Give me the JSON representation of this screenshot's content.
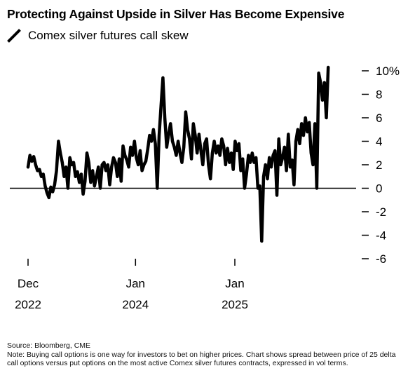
{
  "title": "Protecting Against Upside in Silver Has Become Expensive",
  "legend_label": "Comex silver futures call skew",
  "footer": {
    "source": "Source: Bloomberg, CME",
    "note": "Note: Buying call options is one way for investors to bet on higher prices. Chart shows spread between price of 25 delta call options versus put options on the most active Comex silver futures contracts, expressed in vol terms."
  },
  "chart_data": {
    "type": "line",
    "title": "Protecting Against Upside in Silver Has Become Expensive",
    "xlabel": "",
    "ylabel": "",
    "ylim": [
      -6,
      10
    ],
    "y_ticks": [
      10,
      8,
      6,
      4,
      2,
      0,
      -2,
      -4,
      -6
    ],
    "y_tick_labels": [
      "10%",
      "8",
      "6",
      "4",
      "2",
      "0",
      "-2",
      "-4",
      "-6"
    ],
    "x_ticks": [
      {
        "date": "2022-12-01",
        "line1": "Dec",
        "line2": "2022"
      },
      {
        "date": "2024-01-01",
        "line1": "Jan",
        "line2": "2024"
      },
      {
        "date": "2025-01-01",
        "line1": "Jan",
        "line2": "2025"
      }
    ],
    "zero_line": true,
    "grid": false,
    "series": [
      {
        "name": "Comex silver futures call skew",
        "color": "#000000",
        "points": [
          [
            "2022-12-01",
            1.8
          ],
          [
            "2022-12-08",
            2.8
          ],
          [
            "2022-12-15",
            2.3
          ],
          [
            "2022-12-22",
            2.7
          ],
          [
            "2022-12-29",
            2.0
          ],
          [
            "2023-01-05",
            1.5
          ],
          [
            "2023-01-12",
            1.6
          ],
          [
            "2023-01-19",
            1.0
          ],
          [
            "2023-01-26",
            1.2
          ],
          [
            "2023-02-02",
            0.2
          ],
          [
            "2023-02-09",
            -0.4
          ],
          [
            "2023-02-16",
            -0.8
          ],
          [
            "2023-02-23",
            0.1
          ],
          [
            "2023-03-02",
            -0.3
          ],
          [
            "2023-03-09",
            0.3
          ],
          [
            "2023-03-16",
            1.5
          ],
          [
            "2023-03-23",
            4.0
          ],
          [
            "2023-03-30",
            3.0
          ],
          [
            "2023-04-06",
            2.2
          ],
          [
            "2023-04-13",
            1.0
          ],
          [
            "2023-04-20",
            1.8
          ],
          [
            "2023-04-27",
            0.0
          ],
          [
            "2023-05-04",
            2.6
          ],
          [
            "2023-05-11",
            2.0
          ],
          [
            "2023-05-18",
            2.2
          ],
          [
            "2023-05-25",
            1.0
          ],
          [
            "2023-06-01",
            1.4
          ],
          [
            "2023-06-08",
            0.5
          ],
          [
            "2023-06-15",
            1.2
          ],
          [
            "2023-06-22",
            -0.5
          ],
          [
            "2023-06-29",
            0.6
          ],
          [
            "2023-07-06",
            3.0
          ],
          [
            "2023-07-13",
            2.2
          ],
          [
            "2023-07-20",
            0.5
          ],
          [
            "2023-07-27",
            1.5
          ],
          [
            "2023-08-03",
            0.2
          ],
          [
            "2023-08-10",
            1.0
          ],
          [
            "2023-08-17",
            1.8
          ],
          [
            "2023-08-24",
            0.0
          ],
          [
            "2023-08-31",
            2.0
          ],
          [
            "2023-09-07",
            2.2
          ],
          [
            "2023-09-14",
            1.5
          ],
          [
            "2023-09-21",
            2.0
          ],
          [
            "2023-09-28",
            0.3
          ],
          [
            "2023-10-05",
            1.8
          ],
          [
            "2023-10-12",
            2.6
          ],
          [
            "2023-10-19",
            2.2
          ],
          [
            "2023-10-26",
            1.0
          ],
          [
            "2023-11-02",
            2.5
          ],
          [
            "2023-11-09",
            0.6
          ],
          [
            "2023-11-16",
            3.6
          ],
          [
            "2023-11-23",
            2.8
          ],
          [
            "2023-11-30",
            2.4
          ],
          [
            "2023-12-07",
            1.8
          ],
          [
            "2023-12-14",
            3.5
          ],
          [
            "2023-12-21",
            2.8
          ],
          [
            "2023-12-28",
            4.0
          ],
          [
            "2024-01-04",
            2.6
          ],
          [
            "2024-01-11",
            2.0
          ],
          [
            "2024-01-18",
            3.2
          ],
          [
            "2024-01-25",
            1.5
          ],
          [
            "2024-02-01",
            2.0
          ],
          [
            "2024-02-08",
            2.3
          ],
          [
            "2024-02-15",
            3.3
          ],
          [
            "2024-02-22",
            4.5
          ],
          [
            "2024-02-29",
            4.0
          ],
          [
            "2024-03-07",
            5.0
          ],
          [
            "2024-03-14",
            3.8
          ],
          [
            "2024-03-21",
            0.0
          ],
          [
            "2024-03-28",
            4.5
          ],
          [
            "2024-04-04",
            7.0
          ],
          [
            "2024-04-11",
            9.4
          ],
          [
            "2024-04-18",
            6.0
          ],
          [
            "2024-04-25",
            3.5
          ],
          [
            "2024-05-02",
            4.6
          ],
          [
            "2024-05-09",
            5.5
          ],
          [
            "2024-05-16",
            4.0
          ],
          [
            "2024-05-23",
            3.5
          ],
          [
            "2024-05-30",
            2.8
          ],
          [
            "2024-06-06",
            4.0
          ],
          [
            "2024-06-13",
            3.0
          ],
          [
            "2024-06-20",
            2.2
          ],
          [
            "2024-06-27",
            3.5
          ],
          [
            "2024-07-04",
            6.5
          ],
          [
            "2024-07-11",
            5.0
          ],
          [
            "2024-07-18",
            4.2
          ],
          [
            "2024-07-25",
            2.5
          ],
          [
            "2024-08-01",
            5.5
          ],
          [
            "2024-08-08",
            4.5
          ],
          [
            "2024-08-15",
            3.0
          ],
          [
            "2024-08-22",
            4.6
          ],
          [
            "2024-08-29",
            3.2
          ],
          [
            "2024-09-05",
            2.0
          ],
          [
            "2024-09-12",
            3.8
          ],
          [
            "2024-09-19",
            4.2
          ],
          [
            "2024-09-26",
            2.0
          ],
          [
            "2024-10-03",
            0.8
          ],
          [
            "2024-10-10",
            3.0
          ],
          [
            "2024-10-17",
            4.0
          ],
          [
            "2024-10-24",
            3.0
          ],
          [
            "2024-10-31",
            3.6
          ],
          [
            "2024-11-07",
            2.8
          ],
          [
            "2024-11-14",
            4.2
          ],
          [
            "2024-11-21",
            3.6
          ],
          [
            "2024-11-28",
            2.0
          ],
          [
            "2024-12-05",
            3.4
          ],
          [
            "2024-12-12",
            2.2
          ],
          [
            "2024-12-19",
            3.0
          ],
          [
            "2024-12-26",
            1.6
          ],
          [
            "2025-01-02",
            4.0
          ],
          [
            "2025-01-09",
            3.2
          ],
          [
            "2025-01-16",
            3.8
          ],
          [
            "2025-01-23",
            1.5
          ],
          [
            "2025-01-30",
            2.5
          ],
          [
            "2025-02-06",
            0.0
          ],
          [
            "2025-02-13",
            1.2
          ],
          [
            "2025-02-20",
            2.8
          ],
          [
            "2025-02-27",
            2.2
          ],
          [
            "2025-03-06",
            3.0
          ],
          [
            "2025-03-13",
            2.2
          ],
          [
            "2025-03-20",
            2.6
          ],
          [
            "2025-03-27",
            0.0
          ],
          [
            "2025-04-03",
            0.2
          ],
          [
            "2025-04-10",
            -4.5
          ],
          [
            "2025-04-17",
            1.0
          ],
          [
            "2025-04-24",
            2.0
          ],
          [
            "2025-05-01",
            0.8
          ],
          [
            "2025-05-08",
            2.6
          ],
          [
            "2025-05-15",
            1.8
          ],
          [
            "2025-05-22",
            2.8
          ],
          [
            "2025-05-29",
            3.2
          ],
          [
            "2025-06-05",
            -0.6
          ],
          [
            "2025-06-12",
            4.2
          ],
          [
            "2025-06-19",
            2.0
          ],
          [
            "2025-06-26",
            2.6
          ],
          [
            "2025-07-03",
            3.5
          ],
          [
            "2025-07-10",
            1.5
          ],
          [
            "2025-07-17",
            4.6
          ],
          [
            "2025-07-24",
            1.8
          ],
          [
            "2025-07-31",
            2.4
          ],
          [
            "2025-08-07",
            0.3
          ],
          [
            "2025-08-14",
            4.0
          ],
          [
            "2025-08-21",
            5.0
          ],
          [
            "2025-08-28",
            3.8
          ],
          [
            "2025-09-04",
            5.5
          ],
          [
            "2025-09-11",
            4.5
          ],
          [
            "2025-09-18",
            6.0
          ],
          [
            "2025-09-25",
            4.8
          ],
          [
            "2025-10-02",
            5.6
          ],
          [
            "2025-10-09",
            3.0
          ],
          [
            "2025-10-16",
            2.0
          ],
          [
            "2025-10-23",
            5.5
          ],
          [
            "2025-10-30",
            0.0
          ],
          [
            "2025-11-06",
            9.8
          ],
          [
            "2025-11-13",
            9.0
          ],
          [
            "2025-11-20",
            7.5
          ],
          [
            "2025-11-27",
            9.0
          ],
          [
            "2025-12-04",
            6.0
          ],
          [
            "2025-12-11",
            10.3
          ]
        ]
      }
    ]
  }
}
